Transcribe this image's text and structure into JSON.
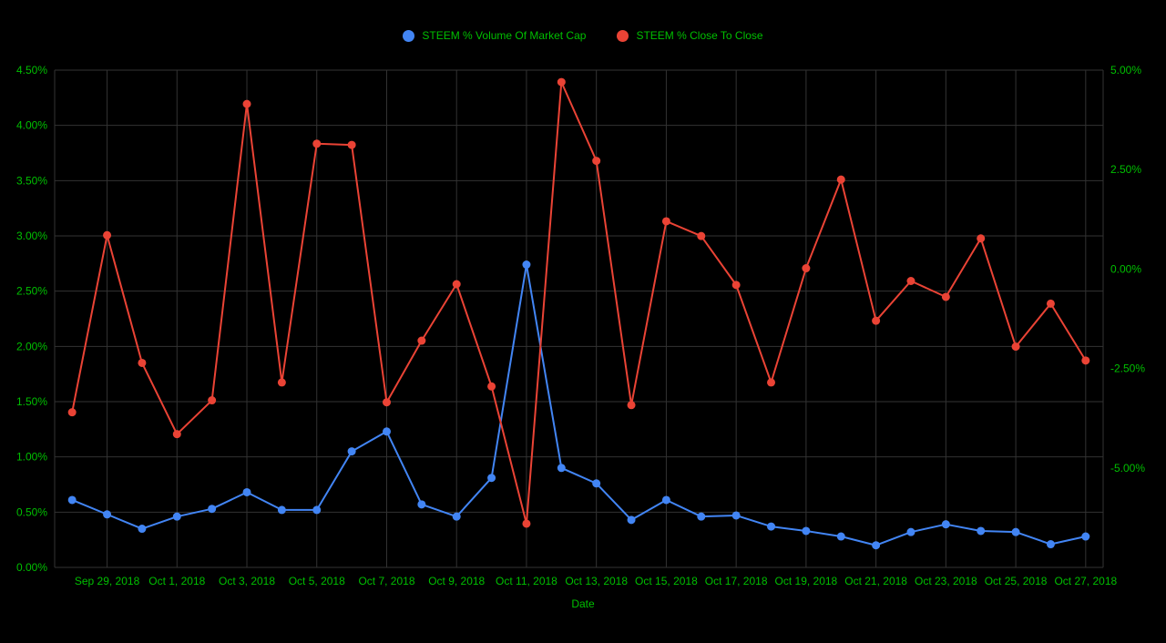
{
  "legend": {
    "series1": "STEEM % Volume Of Market Cap",
    "series2": "STEEM % Close To Close"
  },
  "colors": {
    "background": "#000000",
    "grid": "#333333",
    "axis_text": "#00bf00",
    "series1": "#4285f4",
    "series2": "#ea4335"
  },
  "chart_data": {
    "type": "line",
    "title": "",
    "xlabel": "Date",
    "grid": true,
    "legend_position": "top-center",
    "x": [
      "Sep 28, 2018",
      "Sep 29, 2018",
      "Sep 30, 2018",
      "Oct 1, 2018",
      "Oct 2, 2018",
      "Oct 3, 2018",
      "Oct 4, 2018",
      "Oct 5, 2018",
      "Oct 6, 2018",
      "Oct 7, 2018",
      "Oct 8, 2018",
      "Oct 9, 2018",
      "Oct 10, 2018",
      "Oct 11, 2018",
      "Oct 12, 2018",
      "Oct 13, 2018",
      "Oct 14, 2018",
      "Oct 15, 2018",
      "Oct 16, 2018",
      "Oct 17, 2018",
      "Oct 18, 2018",
      "Oct 19, 2018",
      "Oct 20, 2018",
      "Oct 21, 2018",
      "Oct 22, 2018",
      "Oct 23, 2018",
      "Oct 24, 2018",
      "Oct 25, 2018",
      "Oct 26, 2018",
      "Oct 27, 2018"
    ],
    "x_tick_labels": [
      "Sep 29, 2018",
      "Oct 1, 2018",
      "Oct 3, 2018",
      "Oct 5, 2018",
      "Oct 7, 2018",
      "Oct 9, 2018",
      "Oct 11, 2018",
      "Oct 13, 2018",
      "Oct 15, 2018",
      "Oct 17, 2018",
      "Oct 19, 2018",
      "Oct 21, 2018",
      "Oct 23, 2018",
      "Oct 25, 2018",
      "Oct 27, 2018"
    ],
    "series": [
      {
        "name": "STEEM % Volume Of Market Cap",
        "axis": "left",
        "color": "#4285f4",
        "values": [
          0.61,
          0.48,
          0.35,
          0.46,
          0.53,
          0.68,
          0.52,
          0.52,
          1.05,
          1.23,
          0.57,
          0.46,
          0.81,
          2.74,
          0.9,
          0.76,
          0.43,
          0.61,
          0.46,
          0.47,
          0.37,
          0.33,
          0.28,
          0.2,
          0.32,
          0.39,
          0.33,
          0.32,
          0.21,
          0.28
        ]
      },
      {
        "name": "STEEM % Close To Close",
        "axis": "right",
        "color": "#ea4335",
        "values": [
          -3.6,
          0.85,
          -2.36,
          -4.15,
          -3.3,
          4.15,
          -2.85,
          3.15,
          3.12,
          -3.35,
          -1.8,
          -0.38,
          -2.95,
          -6.4,
          4.7,
          2.72,
          -3.42,
          1.2,
          0.83,
          -0.4,
          -2.85,
          0.02,
          2.25,
          -1.3,
          -0.3,
          -0.7,
          0.77,
          -1.95,
          -0.87,
          -2.3
        ]
      }
    ],
    "left_axis": {
      "min": 0.0,
      "max": 4.5,
      "tick_step": 0.5,
      "format": "percent2"
    },
    "right_axis": {
      "min": -7.5,
      "max": 5.0,
      "ticks": [
        5.0,
        2.5,
        0.0,
        -2.5,
        -5.0
      ],
      "format": "percent2"
    }
  }
}
